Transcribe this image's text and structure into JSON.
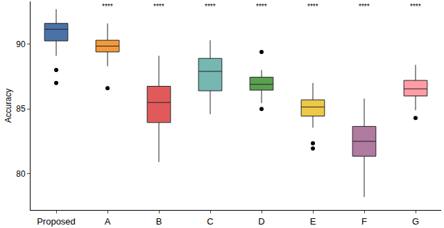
{
  "chart_data": {
    "type": "box",
    "y_label": "Accuracy",
    "categories": [
      "Proposed",
      "A",
      "B",
      "C",
      "D",
      "E",
      "F",
      "G"
    ],
    "colors": [
      "#4a72a8",
      "#f39a3a",
      "#e05a5c",
      "#76b7b2",
      "#59a14f",
      "#edc948",
      "#b07aa1",
      "#ff9da7"
    ],
    "boxes": [
      {
        "lowerfence": 89.1,
        "q1": 90.25,
        "median": 91.15,
        "q3": 91.6,
        "upperfence": 92.7,
        "outliers": [
          88.0,
          87.0
        ]
      },
      {
        "lowerfence": 88.3,
        "q1": 89.4,
        "median": 89.85,
        "q3": 90.3,
        "upperfence": 91.6,
        "outliers": [
          86.6
        ]
      },
      {
        "lowerfence": 80.9,
        "q1": 83.95,
        "median": 85.5,
        "q3": 86.75,
        "upperfence": 89.1,
        "outliers": []
      },
      {
        "lowerfence": 84.6,
        "q1": 86.4,
        "median": 87.9,
        "q3": 88.9,
        "upperfence": 90.3,
        "outliers": []
      },
      {
        "lowerfence": 85.45,
        "q1": 86.45,
        "median": 86.9,
        "q3": 87.45,
        "upperfence": 88.0,
        "outliers": [
          89.4,
          85.0
        ]
      },
      {
        "lowerfence": 83.55,
        "q1": 84.45,
        "median": 85.15,
        "q3": 85.7,
        "upperfence": 87.0,
        "outliers": [
          82.35,
          81.95
        ]
      },
      {
        "lowerfence": 78.2,
        "q1": 81.35,
        "median": 82.5,
        "q3": 83.65,
        "upperfence": 85.8,
        "outliers": []
      },
      {
        "lowerfence": 84.9,
        "q1": 86.0,
        "median": 86.55,
        "q3": 87.2,
        "upperfence": 88.4,
        "outliers": [
          84.3
        ]
      }
    ],
    "significance": [
      null,
      "****",
      "****",
      "****",
      "****",
      "****",
      "****",
      "****"
    ],
    "ylim": [
      77.2,
      93.3
    ],
    "yticks": [
      80,
      85,
      90
    ],
    "grid": false
  }
}
